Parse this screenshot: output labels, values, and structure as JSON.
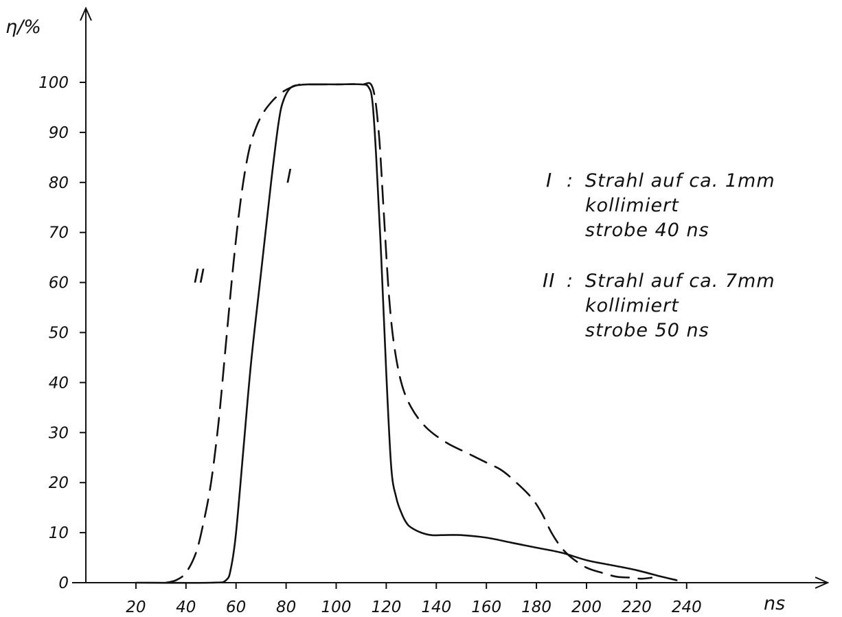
{
  "chart_data": {
    "type": "line",
    "ylabel": "η/%",
    "xlabel": "ns",
    "xlim": [
      0,
      250
    ],
    "ylim": [
      0,
      100
    ],
    "x_ticks": [
      20,
      40,
      60,
      80,
      100,
      120,
      140,
      160,
      180,
      200,
      220,
      240
    ],
    "y_ticks": [
      0,
      10,
      20,
      30,
      40,
      50,
      60,
      70,
      80,
      90,
      100
    ],
    "grid": false,
    "series": [
      {
        "name": "I",
        "style": "solid",
        "color": "#111111",
        "x": [
          20,
          50,
          56,
          58,
          60,
          63,
          66,
          70,
          74,
          77,
          79,
          82,
          86,
          90,
          100,
          110,
          113,
          114.5,
          116,
          118,
          120,
          122,
          124,
          126,
          128,
          130,
          134,
          138,
          142,
          150,
          160,
          170,
          180,
          190,
          200,
          210,
          220,
          230,
          236
        ],
        "y": [
          0,
          0,
          0.5,
          3,
          10,
          27,
          44,
          62,
          80,
          92,
          96.5,
          99,
          99.5,
          99.6,
          99.6,
          99.6,
          99,
          96,
          85,
          65,
          42,
          23,
          17,
          14,
          12,
          11,
          10,
          9.5,
          9.5,
          9.5,
          9,
          8,
          7,
          6,
          4.5,
          3.5,
          2.5,
          1.2,
          0.5
        ]
      },
      {
        "name": "II",
        "style": "dashed",
        "color": "#111111",
        "x": [
          32,
          36,
          40,
          44,
          47,
          50,
          53,
          56,
          59,
          62,
          65,
          68,
          71,
          74,
          77,
          80,
          83,
          86,
          90,
          100,
          110,
          114.5,
          117,
          119,
          121,
          123,
          126,
          130,
          136,
          144,
          152,
          160,
          166,
          172,
          178,
          182,
          186,
          190,
          194,
          200,
          206,
          212,
          218,
          222,
          226
        ],
        "y": [
          0,
          0.5,
          2,
          6,
          12,
          20,
          32,
          48,
          64,
          77,
          86,
          91,
          94,
          96,
          97.5,
          98.5,
          99.2,
          99.6,
          99.6,
          99.6,
          99.6,
          99,
          90,
          74,
          58,
          48,
          40,
          35,
          31,
          28,
          26,
          24,
          22.5,
          20,
          17,
          14,
          10,
          7,
          5,
          3,
          2,
          1.2,
          1,
          0.8,
          1
        ]
      }
    ],
    "annotations": [
      {
        "text": "I",
        "x": 80,
        "y": 80
      },
      {
        "text": "II",
        "x": 43,
        "y": 60
      }
    ],
    "legend": {
      "position": "right",
      "entries": [
        {
          "marker": "I",
          "lines": [
            "Strahl auf ca. 1mm",
            "kollimiert",
            "strobe 40 ns"
          ]
        },
        {
          "marker": "II",
          "lines": [
            "Strahl auf ca. 7mm",
            "kollimiert",
            "strobe 50 ns"
          ]
        }
      ]
    }
  }
}
